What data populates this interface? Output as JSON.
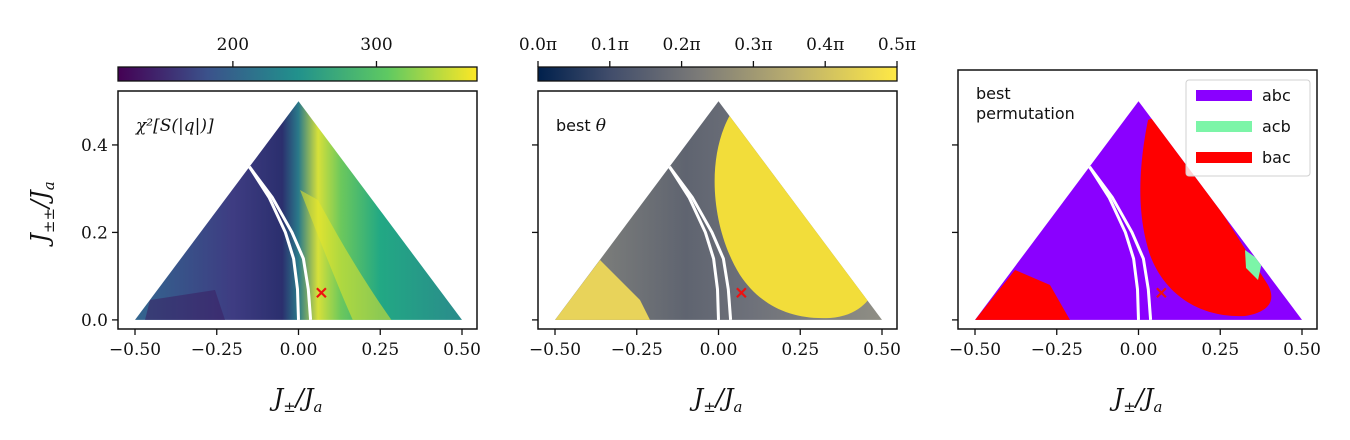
{
  "chart_data": [
    {
      "type": "heatmap",
      "panel": "chi2",
      "annotation": "χ²[S(|q|)]",
      "colorbar": {
        "cmap": "viridis",
        "ticks": [
          "200",
          "300"
        ],
        "tick_values": [
          200,
          300
        ],
        "range": [
          120,
          370
        ]
      },
      "xlabel": "J±/Ja",
      "ylabel": "J±±/Ja",
      "xlim": [
        -0.55,
        0.55
      ],
      "ylim": [
        -0.02,
        0.52
      ],
      "xticks": [
        -0.5,
        -0.25,
        0.0,
        0.25,
        0.5
      ],
      "xtick_labels": [
        "−0.50",
        "−0.25",
        "0.00",
        "0.25",
        "0.50"
      ],
      "yticks": [
        0.0,
        0.2,
        0.4
      ],
      "ytick_labels": [
        "0.0",
        "0.2",
        "0.4"
      ],
      "domain": {
        "vertices": [
          [
            -0.5,
            0.0
          ],
          [
            0.5,
            0.0
          ],
          [
            0.0,
            0.5
          ]
        ]
      },
      "marker": {
        "x": 0.07,
        "y": 0.062,
        "symbol": "x",
        "color": "#ee1111"
      },
      "boundary_curves": [
        {
          "x": [
            -0.15,
            -0.09,
            -0.04,
            -0.015,
            -0.003,
            0.0
          ],
          "y": [
            0.35,
            0.28,
            0.2,
            0.14,
            0.07,
            0.0
          ],
          "color": "#ffffff"
        },
        {
          "x": [
            -0.15,
            -0.08,
            -0.02,
            0.015,
            0.03,
            0.037
          ],
          "y": [
            0.35,
            0.28,
            0.2,
            0.14,
            0.07,
            0.0
          ],
          "color": "#ffffff"
        }
      ]
    },
    {
      "type": "heatmap",
      "panel": "theta",
      "annotation_text": "best ",
      "annotation_symbol": "θ",
      "colorbar": {
        "cmap": "cividis",
        "ticks": [
          "0.0π",
          "0.1π",
          "0.2π",
          "0.3π",
          "0.4π",
          "0.5π"
        ],
        "tick_values": [
          0,
          0.1,
          0.2,
          0.3,
          0.4,
          0.5
        ],
        "range": [
          0,
          0.5
        ]
      },
      "xlabel": "J±/Ja",
      "xlim": [
        -0.55,
        0.55
      ],
      "ylim": [
        -0.02,
        0.52
      ],
      "xticks": [
        -0.5,
        -0.25,
        0.0,
        0.25,
        0.5
      ],
      "xtick_labels": [
        "−0.50",
        "−0.25",
        "0.00",
        "0.25",
        "0.50"
      ],
      "yticks": [
        0.0,
        0.2,
        0.4
      ],
      "marker": {
        "x": 0.07,
        "y": 0.062,
        "symbol": "x",
        "color": "#ee1111"
      }
    },
    {
      "type": "heatmap",
      "panel": "permutation",
      "annotation_lines": [
        "best",
        "permutation"
      ],
      "legend": [
        {
          "label": "abc",
          "color": "#8a00ff"
        },
        {
          "label": "acb",
          "color": "#7cf5a8"
        },
        {
          "label": "bac",
          "color": "#ff0000"
        }
      ],
      "xlabel": "J±/Ja",
      "xlim": [
        -0.55,
        0.55
      ],
      "ylim": [
        -0.02,
        0.52
      ],
      "xticks": [
        -0.5,
        -0.25,
        0.0,
        0.25,
        0.5
      ],
      "xtick_labels": [
        "−0.50",
        "−0.25",
        "0.00",
        "0.25",
        "0.50"
      ],
      "yticks": [
        0.0,
        0.2,
        0.4
      ],
      "marker": {
        "x": 0.07,
        "y": 0.062,
        "symbol": "x",
        "color": "#ee1111"
      }
    }
  ]
}
